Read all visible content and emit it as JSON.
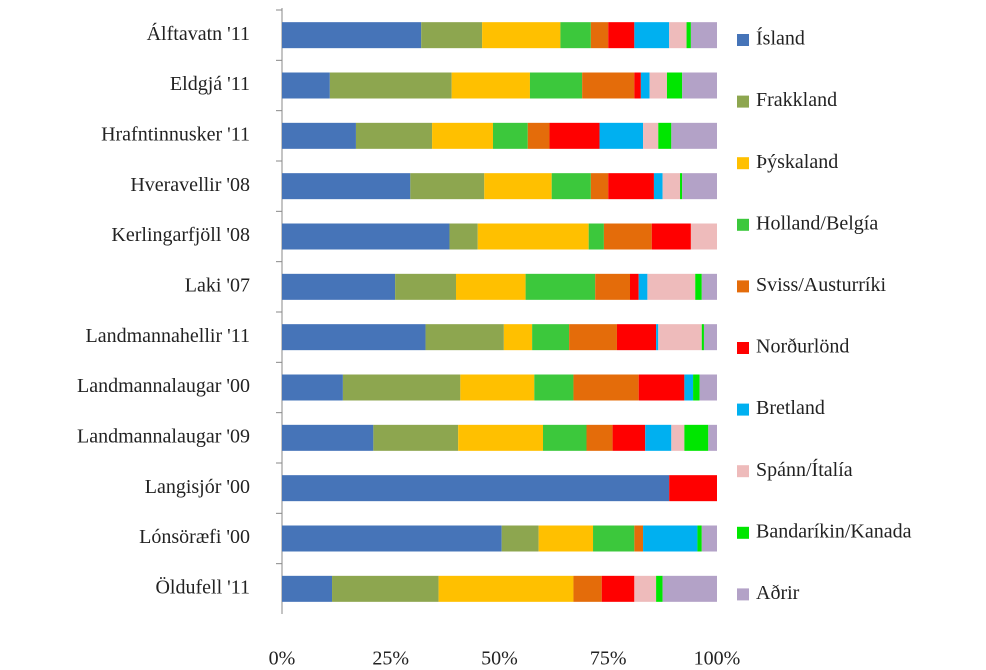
{
  "chart_data": {
    "type": "stacked_barh",
    "categories": [
      "Álftavatn '11",
      "Eldgjá '11",
      "Hrafntinnusker '11",
      "Hveravellir '08",
      "Kerlingarfjöll '08",
      "Laki '07",
      "Landmannahellir '11",
      "Landmannalaugar '00",
      "Landmannalaugar '09",
      "Langisjór '00",
      "Lónsöræfi '00",
      "Öldufell '11"
    ],
    "series": [
      {
        "name": "Ísland",
        "color": "#4674b8",
        "values": [
          32,
          11,
          17,
          29.5,
          38.5,
          26,
          33,
          14,
          21,
          89,
          50.5,
          11.5
        ]
      },
      {
        "name": "Frakkland",
        "color": "#8da64f",
        "values": [
          14,
          28,
          17.5,
          17,
          6.5,
          14,
          18,
          27,
          19.5,
          0,
          8.5,
          24.5
        ]
      },
      {
        "name": "Þýskaland",
        "color": "#ffc000",
        "values": [
          18,
          18,
          14,
          15.5,
          25.5,
          16,
          6.5,
          17,
          19.5,
          0,
          12.5,
          31
        ]
      },
      {
        "name": "Holland/Belgía",
        "color": "#3cc83c",
        "values": [
          7,
          12,
          8,
          9,
          3.5,
          16,
          8.5,
          9,
          10,
          0,
          9.5,
          0
        ]
      },
      {
        "name": "Sviss/Austurríki",
        "color": "#e46c0a",
        "values": [
          4,
          12,
          5,
          4,
          11,
          8,
          11,
          15,
          6,
          0,
          2,
          6.5
        ]
      },
      {
        "name": "Norðurlönd",
        "color": "#ff0000",
        "values": [
          6,
          1.5,
          11.5,
          10.5,
          9,
          2,
          9,
          10.5,
          7.5,
          11,
          0,
          7.5
        ]
      },
      {
        "name": "Bretland",
        "color": "#00b0f0",
        "values": [
          8,
          2,
          10,
          2,
          0,
          2,
          0.5,
          2,
          6,
          0,
          12.5,
          0
        ]
      },
      {
        "name": "Spánn/Ítalía",
        "color": "#eebbbb",
        "values": [
          4,
          4,
          3.5,
          4,
          6,
          11,
          10,
          0,
          3,
          0,
          0,
          5
        ]
      },
      {
        "name": "Bandaríkin/Kanada",
        "color": "#00e600",
        "values": [
          1,
          3.5,
          3,
          0.5,
          0,
          1.5,
          0.5,
          1.5,
          5.5,
          0,
          1,
          1.5
        ]
      },
      {
        "name": "Aðrir",
        "color": "#b3a2c7",
        "values": [
          6,
          8,
          10.5,
          8,
          0,
          3.5,
          3,
          4,
          2,
          0,
          3.5,
          12.5
        ]
      }
    ],
    "xlim": [
      0,
      100
    ],
    "xticks": [
      {
        "value": 0,
        "label": "0%"
      },
      {
        "value": 25,
        "label": "25%"
      },
      {
        "value": 50,
        "label": "50%"
      },
      {
        "value": 75,
        "label": "75%"
      },
      {
        "value": 100,
        "label": "100%"
      }
    ],
    "legend": "right"
  }
}
